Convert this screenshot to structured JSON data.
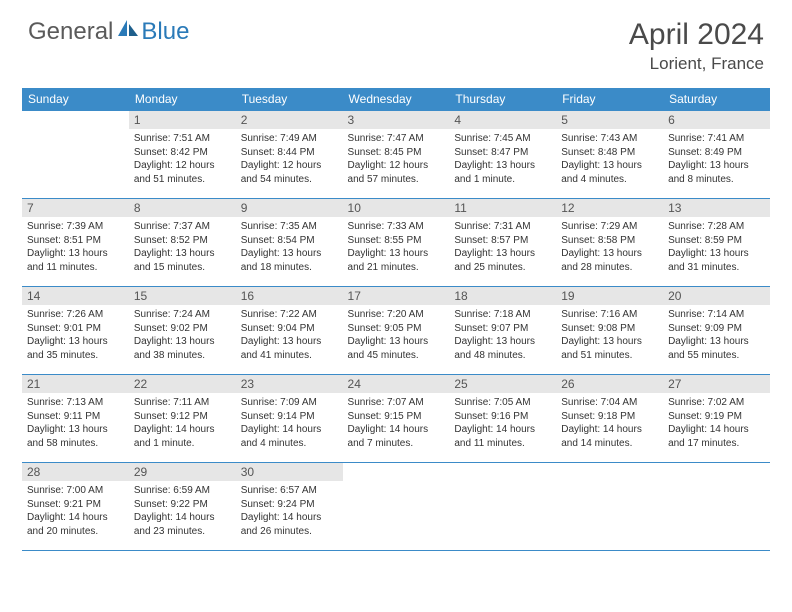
{
  "brand": {
    "part1": "General",
    "part2": "Blue",
    "brand_color": "#2a7ab8",
    "text_color": "#5a5a5a"
  },
  "title": "April 2024",
  "location": "Lorient, France",
  "header_color": "#3b8bc8",
  "daynum_bg": "#e6e6e6",
  "dow": [
    "Sunday",
    "Monday",
    "Tuesday",
    "Wednesday",
    "Thursday",
    "Friday",
    "Saturday"
  ],
  "weeks": [
    [
      null,
      {
        "n": "1",
        "sr": "7:51 AM",
        "ss": "8:42 PM",
        "dl": "12 hours and 51 minutes."
      },
      {
        "n": "2",
        "sr": "7:49 AM",
        "ss": "8:44 PM",
        "dl": "12 hours and 54 minutes."
      },
      {
        "n": "3",
        "sr": "7:47 AM",
        "ss": "8:45 PM",
        "dl": "12 hours and 57 minutes."
      },
      {
        "n": "4",
        "sr": "7:45 AM",
        "ss": "8:47 PM",
        "dl": "13 hours and 1 minute."
      },
      {
        "n": "5",
        "sr": "7:43 AM",
        "ss": "8:48 PM",
        "dl": "13 hours and 4 minutes."
      },
      {
        "n": "6",
        "sr": "7:41 AM",
        "ss": "8:49 PM",
        "dl": "13 hours and 8 minutes."
      }
    ],
    [
      {
        "n": "7",
        "sr": "7:39 AM",
        "ss": "8:51 PM",
        "dl": "13 hours and 11 minutes."
      },
      {
        "n": "8",
        "sr": "7:37 AM",
        "ss": "8:52 PM",
        "dl": "13 hours and 15 minutes."
      },
      {
        "n": "9",
        "sr": "7:35 AM",
        "ss": "8:54 PM",
        "dl": "13 hours and 18 minutes."
      },
      {
        "n": "10",
        "sr": "7:33 AM",
        "ss": "8:55 PM",
        "dl": "13 hours and 21 minutes."
      },
      {
        "n": "11",
        "sr": "7:31 AM",
        "ss": "8:57 PM",
        "dl": "13 hours and 25 minutes."
      },
      {
        "n": "12",
        "sr": "7:29 AM",
        "ss": "8:58 PM",
        "dl": "13 hours and 28 minutes."
      },
      {
        "n": "13",
        "sr": "7:28 AM",
        "ss": "8:59 PM",
        "dl": "13 hours and 31 minutes."
      }
    ],
    [
      {
        "n": "14",
        "sr": "7:26 AM",
        "ss": "9:01 PM",
        "dl": "13 hours and 35 minutes."
      },
      {
        "n": "15",
        "sr": "7:24 AM",
        "ss": "9:02 PM",
        "dl": "13 hours and 38 minutes."
      },
      {
        "n": "16",
        "sr": "7:22 AM",
        "ss": "9:04 PM",
        "dl": "13 hours and 41 minutes."
      },
      {
        "n": "17",
        "sr": "7:20 AM",
        "ss": "9:05 PM",
        "dl": "13 hours and 45 minutes."
      },
      {
        "n": "18",
        "sr": "7:18 AM",
        "ss": "9:07 PM",
        "dl": "13 hours and 48 minutes."
      },
      {
        "n": "19",
        "sr": "7:16 AM",
        "ss": "9:08 PM",
        "dl": "13 hours and 51 minutes."
      },
      {
        "n": "20",
        "sr": "7:14 AM",
        "ss": "9:09 PM",
        "dl": "13 hours and 55 minutes."
      }
    ],
    [
      {
        "n": "21",
        "sr": "7:13 AM",
        "ss": "9:11 PM",
        "dl": "13 hours and 58 minutes."
      },
      {
        "n": "22",
        "sr": "7:11 AM",
        "ss": "9:12 PM",
        "dl": "14 hours and 1 minute."
      },
      {
        "n": "23",
        "sr": "7:09 AM",
        "ss": "9:14 PM",
        "dl": "14 hours and 4 minutes."
      },
      {
        "n": "24",
        "sr": "7:07 AM",
        "ss": "9:15 PM",
        "dl": "14 hours and 7 minutes."
      },
      {
        "n": "25",
        "sr": "7:05 AM",
        "ss": "9:16 PM",
        "dl": "14 hours and 11 minutes."
      },
      {
        "n": "26",
        "sr": "7:04 AM",
        "ss": "9:18 PM",
        "dl": "14 hours and 14 minutes."
      },
      {
        "n": "27",
        "sr": "7:02 AM",
        "ss": "9:19 PM",
        "dl": "14 hours and 17 minutes."
      }
    ],
    [
      {
        "n": "28",
        "sr": "7:00 AM",
        "ss": "9:21 PM",
        "dl": "14 hours and 20 minutes."
      },
      {
        "n": "29",
        "sr": "6:59 AM",
        "ss": "9:22 PM",
        "dl": "14 hours and 23 minutes."
      },
      {
        "n": "30",
        "sr": "6:57 AM",
        "ss": "9:24 PM",
        "dl": "14 hours and 26 minutes."
      },
      null,
      null,
      null,
      null
    ]
  ],
  "labels": {
    "sunrise": "Sunrise: ",
    "sunset": "Sunset: ",
    "daylight": "Daylight: "
  }
}
